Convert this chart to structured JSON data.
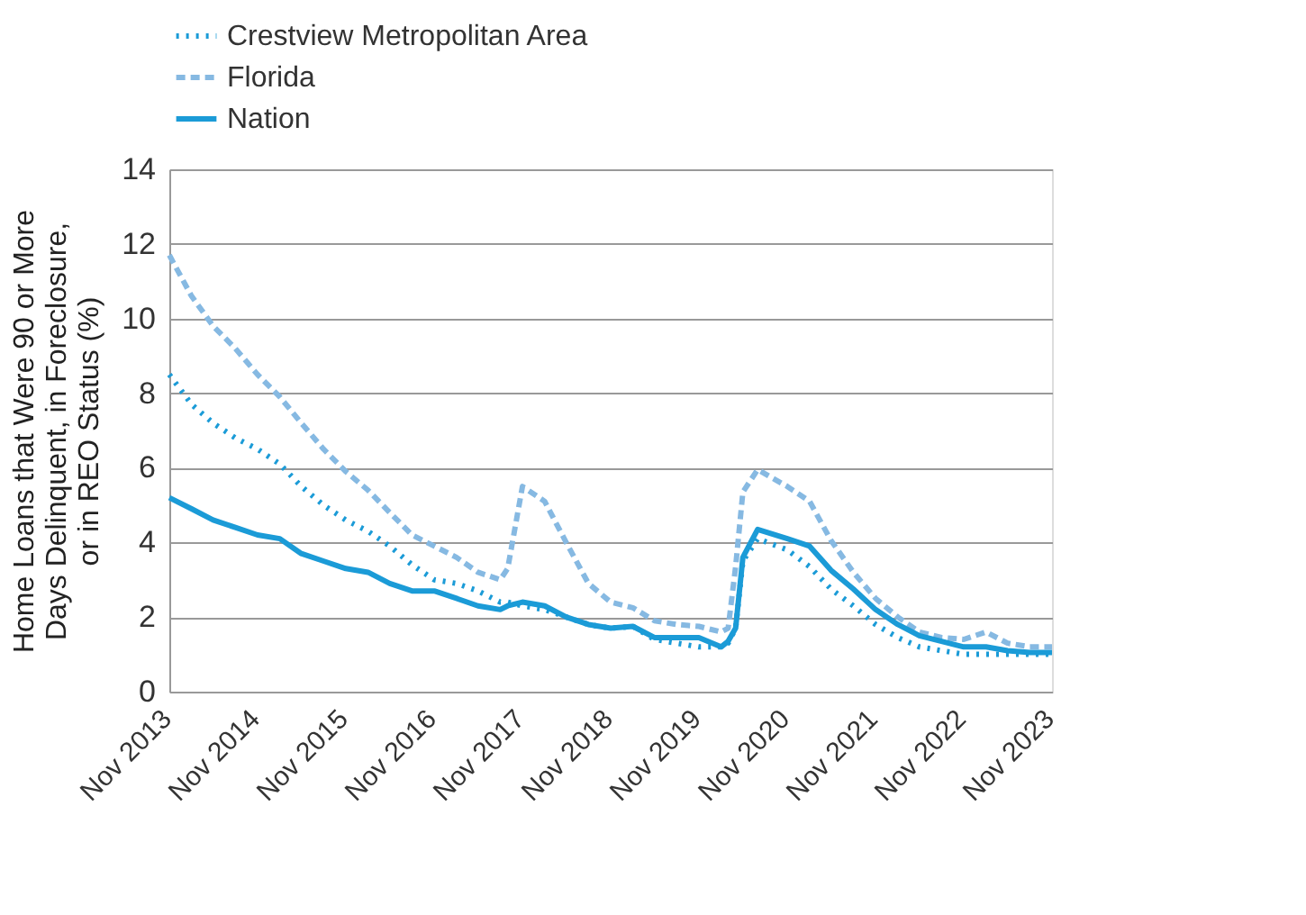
{
  "chart_data": {
    "type": "line",
    "ylabel": "Home Loans that Were 90 or More Days Delinquent, in Foreclosure, or in REO Status (%)",
    "x": [
      "2013-11",
      "2014-02",
      "2014-05",
      "2014-08",
      "2014-11",
      "2015-02",
      "2015-05",
      "2015-08",
      "2015-11",
      "2016-02",
      "2016-05",
      "2016-08",
      "2016-11",
      "2017-02",
      "2017-05",
      "2017-08",
      "2017-09",
      "2017-11",
      "2018-02",
      "2018-05",
      "2018-08",
      "2018-11",
      "2019-02",
      "2019-05",
      "2019-08",
      "2019-11",
      "2020-02",
      "2020-03",
      "2020-04",
      "2020-05",
      "2020-07",
      "2020-11",
      "2021-02",
      "2021-05",
      "2021-08",
      "2021-11",
      "2022-02",
      "2022-05",
      "2022-08",
      "2022-11",
      "2023-02",
      "2023-05",
      "2023-08",
      "2023-11"
    ],
    "series": [
      {
        "name": "Crestview Metropolitan Area",
        "color": "#1b9bd7",
        "line_style": "dotted",
        "values": [
          8.5,
          7.7,
          7.2,
          6.8,
          6.5,
          6.1,
          5.5,
          5.0,
          4.6,
          4.3,
          3.9,
          3.4,
          3.0,
          2.9,
          2.7,
          2.4,
          2.4,
          2.3,
          2.2,
          2.0,
          1.8,
          1.7,
          1.75,
          1.4,
          1.3,
          1.2,
          1.2,
          1.3,
          1.7,
          3.5,
          4.1,
          3.8,
          3.35,
          2.75,
          2.3,
          1.8,
          1.45,
          1.2,
          1.1,
          1.0,
          1.0,
          1.0,
          1.0,
          1.0
        ]
      },
      {
        "name": "Florida",
        "color": "#86b9e2",
        "line_style": "dashed",
        "values": [
          11.7,
          10.6,
          9.8,
          9.2,
          8.5,
          7.9,
          7.2,
          6.5,
          5.9,
          5.4,
          4.8,
          4.2,
          3.9,
          3.6,
          3.2,
          3.0,
          3.3,
          5.5,
          5.1,
          4.0,
          2.9,
          2.4,
          2.25,
          1.9,
          1.8,
          1.75,
          1.6,
          1.7,
          3.35,
          5.35,
          5.95,
          5.5,
          5.1,
          4.05,
          3.2,
          2.5,
          2.0,
          1.6,
          1.45,
          1.4,
          1.6,
          1.3,
          1.2,
          1.2
        ]
      },
      {
        "name": "Nation",
        "color": "#1b9bd7",
        "line_style": "solid",
        "values": [
          5.2,
          4.9,
          4.6,
          4.4,
          4.2,
          4.1,
          3.7,
          3.5,
          3.3,
          3.2,
          2.9,
          2.7,
          2.7,
          2.5,
          2.3,
          2.2,
          2.3,
          2.4,
          2.3,
          2.0,
          1.8,
          1.7,
          1.75,
          1.45,
          1.45,
          1.45,
          1.2,
          1.35,
          1.7,
          3.6,
          4.35,
          4.1,
          3.9,
          3.25,
          2.75,
          2.2,
          1.8,
          1.5,
          1.35,
          1.2,
          1.2,
          1.1,
          1.05,
          1.05
        ]
      }
    ],
    "xlim": [
      "2013-11",
      "2023-11"
    ],
    "xticks": [
      {
        "value": "2013-11",
        "label": "Nov 2013"
      },
      {
        "value": "2014-11",
        "label": "Nov 2014"
      },
      {
        "value": "2015-11",
        "label": "Nov 2015"
      },
      {
        "value": "2016-11",
        "label": "Nov 2016"
      },
      {
        "value": "2017-11",
        "label": "Nov 2017"
      },
      {
        "value": "2018-11",
        "label": "Nov 2018"
      },
      {
        "value": "2019-11",
        "label": "Nov 2019"
      },
      {
        "value": "2020-11",
        "label": "Nov 2020"
      },
      {
        "value": "2021-11",
        "label": "Nov 2021"
      },
      {
        "value": "2022-11",
        "label": "Nov 2022"
      },
      {
        "value": "2023-11",
        "label": "Nov 2023"
      }
    ],
    "ylim": [
      0,
      14
    ],
    "yticks": [
      0,
      2,
      4,
      6,
      8,
      10,
      12,
      14
    ],
    "grid": "y",
    "legend": "top"
  }
}
